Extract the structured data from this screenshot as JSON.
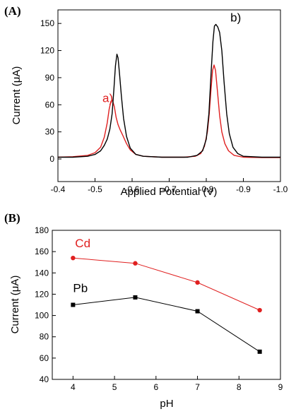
{
  "chart_data": [
    {
      "panel_label": "(A)",
      "type": "line",
      "xlabel": "Applied Potential (V)",
      "ylabel": "Current (μA)",
      "xlim": [
        -0.4,
        -1.0
      ],
      "ylim": [
        -25,
        165
      ],
      "x_ticks": [
        -0.4,
        -0.5,
        -0.6,
        -0.7,
        -0.8,
        -0.9,
        -1.0
      ],
      "x_tick_labels": [
        "-0.4",
        "-0.5",
        "-0.6",
        "-0.7",
        "-0.8",
        "-0.9",
        "-1.0"
      ],
      "y_ticks": [
        0,
        30,
        60,
        90,
        120,
        150
      ],
      "y_tick_labels": [
        "0",
        "30",
        "60",
        "90",
        "120",
        "150"
      ],
      "grid": false,
      "series": [
        {
          "name": "a)",
          "color": "#e02020",
          "points": [
            [
              -0.4,
              2
            ],
            [
              -0.44,
              2.5
            ],
            [
              -0.48,
              4
            ],
            [
              -0.5,
              7
            ],
            [
              -0.515,
              13
            ],
            [
              -0.525,
              24
            ],
            [
              -0.533,
              40
            ],
            [
              -0.538,
              55
            ],
            [
              -0.543,
              64
            ],
            [
              -0.547,
              65
            ],
            [
              -0.552,
              58
            ],
            [
              -0.557,
              46
            ],
            [
              -0.562,
              38
            ],
            [
              -0.568,
              32
            ],
            [
              -0.575,
              26
            ],
            [
              -0.585,
              17
            ],
            [
              -0.595,
              10
            ],
            [
              -0.61,
              5
            ],
            [
              -0.63,
              3
            ],
            [
              -0.68,
              2
            ],
            [
              -0.74,
              2
            ],
            [
              -0.77,
              3
            ],
            [
              -0.785,
              6
            ],
            [
              -0.795,
              14
            ],
            [
              -0.803,
              30
            ],
            [
              -0.808,
              50
            ],
            [
              -0.813,
              78
            ],
            [
              -0.817,
              98
            ],
            [
              -0.821,
              104
            ],
            [
              -0.825,
              98
            ],
            [
              -0.83,
              75
            ],
            [
              -0.836,
              48
            ],
            [
              -0.842,
              30
            ],
            [
              -0.85,
              17
            ],
            [
              -0.86,
              9
            ],
            [
              -0.875,
              4
            ],
            [
              -0.9,
              2
            ],
            [
              -0.95,
              1.5
            ],
            [
              -1.0,
              1.5
            ]
          ]
        },
        {
          "name": "b)",
          "color": "#000000",
          "points": [
            [
              -0.4,
              2
            ],
            [
              -0.44,
              2
            ],
            [
              -0.48,
              3
            ],
            [
              -0.5,
              5
            ],
            [
              -0.515,
              9
            ],
            [
              -0.525,
              15
            ],
            [
              -0.533,
              22
            ],
            [
              -0.54,
              33
            ],
            [
              -0.546,
              50
            ],
            [
              -0.551,
              78
            ],
            [
              -0.555,
              103
            ],
            [
              -0.559,
              116
            ],
            [
              -0.562,
              112
            ],
            [
              -0.566,
              95
            ],
            [
              -0.571,
              70
            ],
            [
              -0.577,
              45
            ],
            [
              -0.585,
              25
            ],
            [
              -0.595,
              12
            ],
            [
              -0.61,
              5
            ],
            [
              -0.63,
              3
            ],
            [
              -0.68,
              2
            ],
            [
              -0.75,
              2
            ],
            [
              -0.775,
              4
            ],
            [
              -0.79,
              9
            ],
            [
              -0.8,
              22
            ],
            [
              -0.807,
              50
            ],
            [
              -0.813,
              95
            ],
            [
              -0.818,
              130
            ],
            [
              -0.822,
              147
            ],
            [
              -0.826,
              149
            ],
            [
              -0.831,
              146
            ],
            [
              -0.836,
              140
            ],
            [
              -0.842,
              120
            ],
            [
              -0.848,
              85
            ],
            [
              -0.855,
              50
            ],
            [
              -0.862,
              28
            ],
            [
              -0.872,
              13
            ],
            [
              -0.885,
              6
            ],
            [
              -0.9,
              3
            ],
            [
              -0.95,
              2
            ],
            [
              -1.0,
              2
            ]
          ]
        }
      ],
      "annotations": [
        {
          "text": "a)",
          "color": "#e02020",
          "x": -0.52,
          "y": 63
        },
        {
          "text": "b)",
          "color": "#000000",
          "x": -0.865,
          "y": 152
        }
      ]
    },
    {
      "panel_label": "(B)",
      "type": "line",
      "xlabel": "pH",
      "ylabel": "Current (μA)",
      "xlim": [
        3.5,
        9
      ],
      "ylim": [
        40,
        180
      ],
      "x_ticks": [
        4,
        5,
        6,
        7,
        8,
        9
      ],
      "x_tick_labels": [
        "4",
        "5",
        "6",
        "7",
        "8",
        "9"
      ],
      "y_ticks": [
        40,
        60,
        80,
        100,
        120,
        140,
        160,
        180
      ],
      "y_tick_labels": [
        "40",
        "60",
        "80",
        "100",
        "120",
        "140",
        "160",
        "180"
      ],
      "grid": false,
      "series": [
        {
          "name": "Cd",
          "color": "#e02020",
          "marker": "circle",
          "x": [
            4,
            5.5,
            7,
            8.5
          ],
          "values": [
            154,
            149,
            131,
            105
          ]
        },
        {
          "name": "Pb",
          "color": "#000000",
          "marker": "square",
          "x": [
            4,
            5.5,
            7,
            8.5
          ],
          "values": [
            110,
            117,
            104,
            66
          ]
        }
      ],
      "annotations": [
        {
          "text": "Cd",
          "color": "#e02020",
          "x": 4.05,
          "y": 164
        },
        {
          "text": "Pb",
          "color": "#000000",
          "x": 4.0,
          "y": 122
        }
      ]
    }
  ]
}
